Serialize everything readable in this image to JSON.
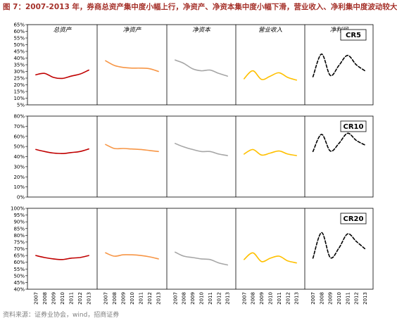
{
  "figure": {
    "title": "图 7：2007-2013 年，券商总资产集中度小幅上行，净资产、净资本集中度小幅下滑，营业收入、净利集中度波动较大",
    "source": "资料来源：证券业协会，wind，招商证券"
  },
  "chart_data": {
    "type": "line",
    "x": [
      "2007",
      "2008",
      "2009",
      "2010",
      "2011",
      "2012",
      "2013"
    ],
    "columns": [
      "总资产",
      "净资产",
      "净资本",
      "营业收入",
      "净利润"
    ],
    "column_colors": [
      "#c00000",
      "#f79646",
      "#a6a6a6",
      "#ffc000",
      "#000000"
    ],
    "dashed_columns": [
      4
    ],
    "grid": false,
    "rows": [
      {
        "label": "CR5",
        "ylim": [
          5,
          65
        ],
        "yticks": [
          "5%",
          "10%",
          "15%",
          "20%",
          "25%",
          "30%",
          "35%",
          "40%",
          "45%",
          "50%",
          "55%",
          "60%",
          "65%"
        ],
        "series": [
          {
            "values": [
              27.5,
              28.5,
              25.5,
              24.8,
              26.5,
              28.0,
              31.0
            ]
          },
          {
            "values": [
              38.0,
              34.5,
              33.0,
              32.5,
              32.5,
              32.0,
              30.0
            ]
          },
          {
            "values": [
              38.5,
              36.0,
              32.0,
              30.5,
              31.0,
              28.5,
              26.5
            ]
          },
          {
            "values": [
              24.5,
              30.5,
              24.0,
              26.5,
              29.0,
              25.5,
              23.5
            ]
          },
          {
            "values": [
              26.0,
              43.0,
              27.0,
              34.5,
              42.0,
              35.0,
              30.5
            ]
          }
        ]
      },
      {
        "label": "CR10",
        "ylim": [
          0,
          80
        ],
        "yticks": [
          "0%",
          "10%",
          "20%",
          "30%",
          "40%",
          "50%",
          "60%",
          "70%",
          "80%"
        ],
        "series": [
          {
            "values": [
              47.0,
              45.0,
              43.5,
              43.0,
              44.0,
              45.0,
              47.5
            ]
          },
          {
            "values": [
              52.0,
              48.0,
              48.0,
              47.5,
              47.0,
              46.0,
              45.0
            ]
          },
          {
            "values": [
              53.0,
              49.5,
              47.0,
              45.0,
              45.0,
              42.5,
              41.0
            ]
          },
          {
            "values": [
              42.5,
              47.0,
              41.5,
              43.5,
              45.5,
              42.5,
              41.0
            ]
          },
          {
            "values": [
              45.0,
              62.0,
              45.5,
              53.0,
              63.0,
              56.0,
              51.5
            ]
          }
        ]
      },
      {
        "label": "CR20",
        "ylim": [
          40,
          100
        ],
        "yticks": [
          "40%",
          "45%",
          "50%",
          "55%",
          "60%",
          "65%",
          "70%",
          "75%",
          "80%",
          "85%",
          "90%",
          "95%",
          "100%"
        ],
        "series": [
          {
            "values": [
              65.0,
              63.5,
              62.5,
              62.0,
              63.0,
              63.5,
              65.0
            ]
          },
          {
            "values": [
              67.0,
              64.5,
              65.5,
              65.5,
              65.0,
              64.0,
              62.5
            ]
          },
          {
            "values": [
              67.5,
              64.5,
              63.5,
              62.5,
              62.0,
              59.5,
              58.0
            ]
          },
          {
            "values": [
              62.0,
              67.0,
              60.5,
              63.0,
              64.5,
              61.0,
              59.5
            ]
          },
          {
            "values": [
              63.0,
              82.0,
              63.5,
              70.5,
              81.0,
              75.5,
              70.0
            ]
          }
        ]
      }
    ]
  }
}
